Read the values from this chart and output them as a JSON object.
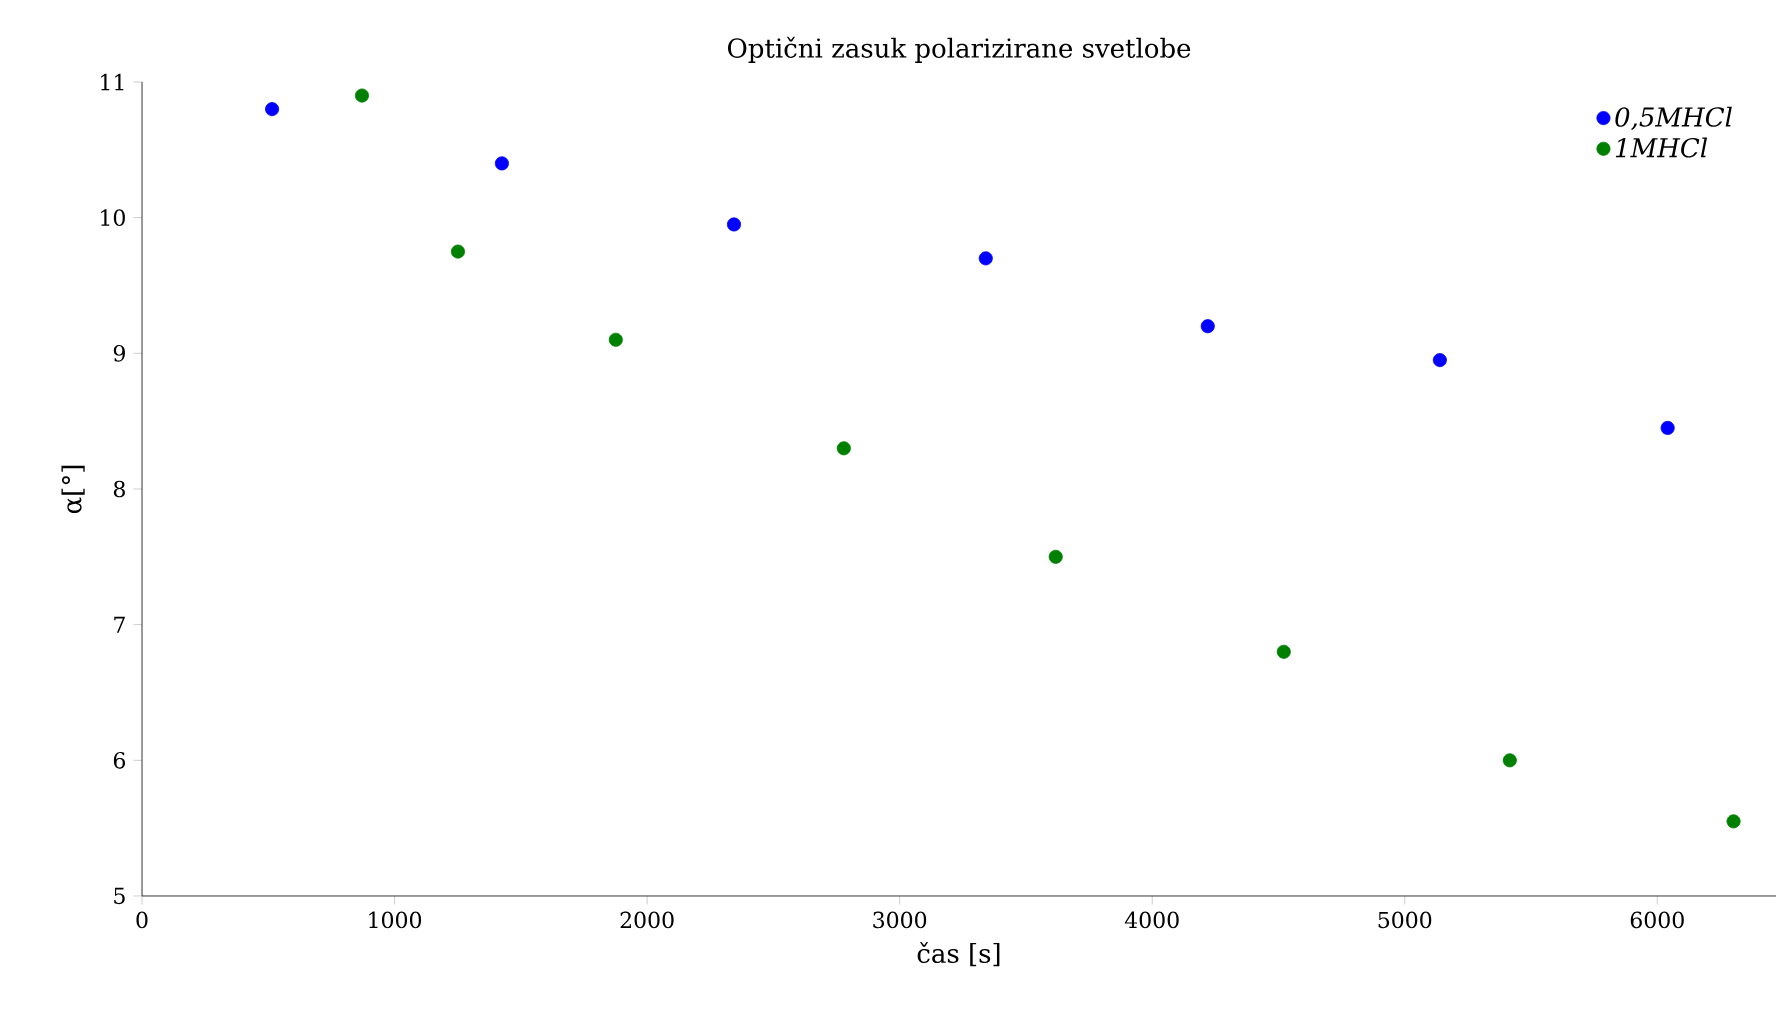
{
  "chart_data": {
    "type": "scatter",
    "title": "Optični zasuk polarizirane svetlobe",
    "xlabel": "čas [s]",
    "ylabel": "α[°]",
    "series": [
      {
        "name": "0,5MHCl",
        "color": "#0000ff",
        "x": [
          515,
          1425,
          2344,
          3341,
          4220,
          5139,
          6041
        ],
        "values": [
          10.8,
          10.4,
          9.95,
          9.7,
          9.2,
          8.95,
          8.45
        ]
      },
      {
        "name": "1MHCl",
        "color": "#008000",
        "x": [
          871,
          1251,
          1876,
          2779,
          3618,
          4521,
          5416,
          6302
        ],
        "values": [
          10.9,
          9.75,
          9.1,
          8.3,
          7.5,
          6.8,
          6.0,
          5.55
        ]
      }
    ],
    "xlim": [
      0,
      6470
    ],
    "ylim": [
      5,
      11
    ],
    "xticks": [
      0,
      1000,
      2000,
      3000,
      4000,
      5000,
      6000
    ],
    "yticks": [
      5,
      6,
      7,
      8,
      9,
      10,
      11
    ],
    "legend": "top right",
    "marker": "circle",
    "grid": false
  }
}
